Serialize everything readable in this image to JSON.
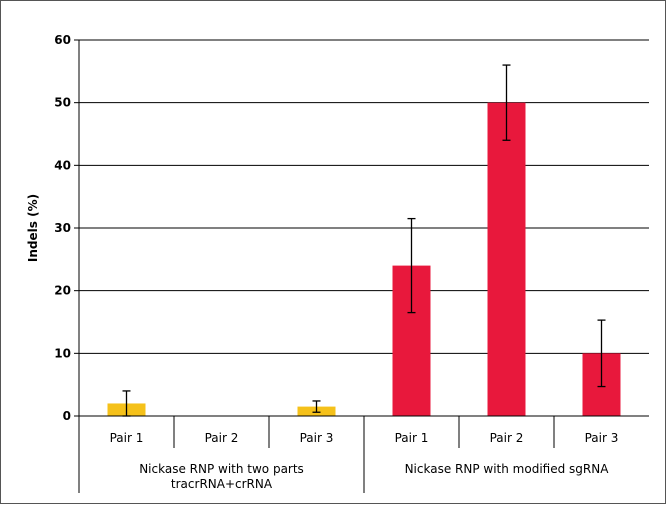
{
  "chart_data": {
    "type": "bar",
    "ylabel": "Indels (%)",
    "ylim": [
      0,
      60
    ],
    "yticks": [
      0,
      10,
      20,
      30,
      40,
      50,
      60
    ],
    "grid": "horizontal",
    "groups": [
      {
        "label_lines": [
          "Nickase RNP with two parts",
          "tracrRNA+crRNA"
        ],
        "color": "#f5c11a",
        "bars": [
          {
            "category": "Pair 1",
            "value": 2.0,
            "error": 2.0
          },
          {
            "category": "Pair 2",
            "value": 0,
            "error": 0
          },
          {
            "category": "Pair 3",
            "value": 1.5,
            "error": 0.9
          }
        ]
      },
      {
        "label_lines": [
          "Nickase RNP with modified sgRNA"
        ],
        "color": "#e8183c",
        "bars": [
          {
            "category": "Pair 1",
            "value": 24.0,
            "error": 7.5
          },
          {
            "category": "Pair 2",
            "value": 50.0,
            "error": 6.0
          },
          {
            "category": "Pair 3",
            "value": 10.0,
            "error": 5.3
          }
        ]
      }
    ]
  }
}
